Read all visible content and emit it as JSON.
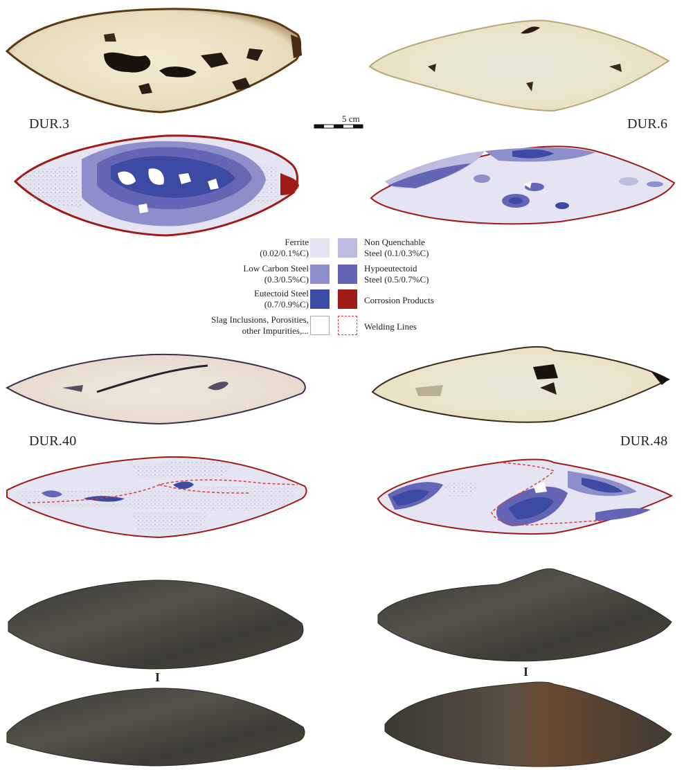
{
  "specimens": {
    "dur3": "DUR.3",
    "dur6": "DUR.6",
    "dur40": "DUR.40",
    "dur48": "DUR.48"
  },
  "scale": {
    "label": "5 cm"
  },
  "legend": {
    "items": [
      {
        "text1": "Ferrite",
        "text2": "(0.02/0.1%C)",
        "color": "#e4e4f2"
      },
      {
        "text1": "Non Quenchable",
        "text2": "Steel (0.1/0.3%C)",
        "color": "#bdbbe0"
      },
      {
        "text1": "Low Carbon Steel",
        "text2": "(0.3/0.5%C)",
        "color": "#8e8ecb"
      },
      {
        "text1": "Hypoeutectoid",
        "text2": "Steel (0.5/0.7%C)",
        "color": "#6466b5"
      },
      {
        "text1": "Eutectoid Steel",
        "text2": "(0.7/0.9%C)",
        "color": "#3d4aa3"
      },
      {
        "text1": "Corrosion Products",
        "text2": "",
        "color": "#a01a17"
      },
      {
        "text1": "Slag Inclusions, Porosities,",
        "text2": "other Impurities,...",
        "color": "#ffffff"
      },
      {
        "text1": "Welding Lines",
        "text2": "",
        "color": "#e23a33"
      }
    ]
  },
  "divider": {
    "mark": "I"
  }
}
